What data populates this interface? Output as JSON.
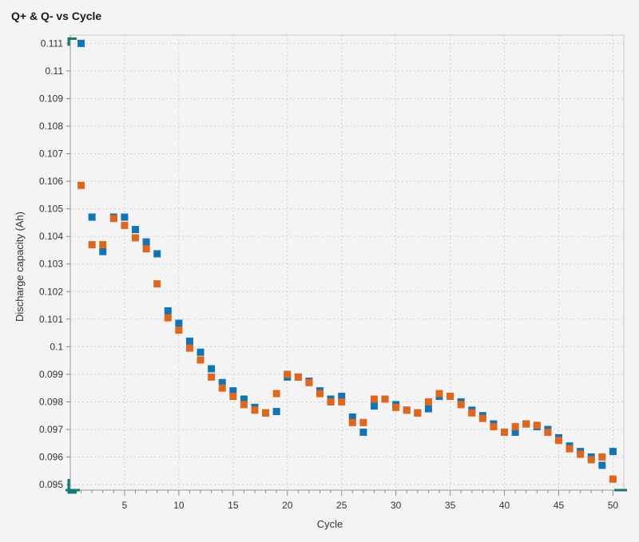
{
  "chart_data": {
    "type": "scatter",
    "title": "Q+ & Q- vs Cycle",
    "xlabel": "Cycle",
    "ylabel": "Discharge capacity (Ah)",
    "xlim": [
      0,
      51
    ],
    "ylim": [
      0.0948,
      0.1113
    ],
    "xticks": [
      5,
      10,
      15,
      20,
      25,
      30,
      35,
      40,
      45,
      50
    ],
    "yticks": [
      0.095,
      0.096,
      0.097,
      0.098,
      0.099,
      0.1,
      0.101,
      0.102,
      0.103,
      0.104,
      0.105,
      0.106,
      0.107,
      0.108,
      0.109,
      0.11,
      0.111
    ],
    "ytick_labels": [
      "0.095",
      "0.096",
      "0.097",
      "0.098",
      "0.099",
      "0.1",
      "0.101",
      "0.102",
      "0.103",
      "0.104",
      "0.105",
      "0.106",
      "0.107",
      "0.108",
      "0.109",
      "0.11",
      "0.111"
    ],
    "grid": true,
    "series": [
      {
        "name": "Q+",
        "color": "#0f74b8",
        "x": [
          1,
          2,
          3,
          4,
          5,
          6,
          7,
          8,
          9,
          10,
          11,
          12,
          13,
          14,
          15,
          16,
          17,
          18,
          19,
          20,
          21,
          22,
          23,
          24,
          25,
          26,
          27,
          28,
          29,
          30,
          31,
          32,
          33,
          34,
          35,
          36,
          37,
          38,
          39,
          40,
          41,
          42,
          43,
          44,
          45,
          46,
          47,
          48,
          49,
          50
        ],
        "y": [
          0.111,
          0.1047,
          0.10345,
          0.1047,
          0.1047,
          0.10425,
          0.1038,
          0.10337,
          0.1013,
          0.10085,
          0.1002,
          0.0998,
          0.0992,
          0.0987,
          0.0984,
          0.0981,
          0.0978,
          0.0976,
          0.09765,
          0.0989,
          0.0989,
          0.09875,
          0.0984,
          0.0981,
          0.0982,
          0.09745,
          0.0969,
          0.09785,
          0.0981,
          0.0979,
          0.0977,
          0.0976,
          0.09775,
          0.0982,
          0.0982,
          0.098,
          0.0977,
          0.0975,
          0.0972,
          0.0969,
          0.0969,
          0.0972,
          0.0971,
          0.097,
          0.0967,
          0.0964,
          0.0962,
          0.096,
          0.0957,
          0.0962
        ]
      },
      {
        "name": "Q-",
        "color": "#e0661b",
        "x": [
          1,
          2,
          3,
          4,
          5,
          6,
          7,
          8,
          9,
          10,
          11,
          12,
          13,
          14,
          15,
          16,
          17,
          18,
          19,
          20,
          21,
          22,
          23,
          24,
          25,
          26,
          27,
          28,
          29,
          30,
          31,
          32,
          33,
          34,
          35,
          36,
          37,
          38,
          39,
          40,
          41,
          42,
          43,
          44,
          45,
          46,
          47,
          48,
          49,
          50
        ],
        "y": [
          0.10585,
          0.1037,
          0.1037,
          0.10465,
          0.1044,
          0.10395,
          0.10355,
          0.10228,
          0.10105,
          0.1006,
          0.09995,
          0.09952,
          0.0989,
          0.0985,
          0.0982,
          0.0979,
          0.0977,
          0.0976,
          0.0983,
          0.099,
          0.0989,
          0.0987,
          0.0983,
          0.098,
          0.098,
          0.09725,
          0.09725,
          0.0981,
          0.0981,
          0.0978,
          0.0977,
          0.0976,
          0.098,
          0.0983,
          0.0982,
          0.0979,
          0.0976,
          0.0974,
          0.0971,
          0.0969,
          0.0971,
          0.0972,
          0.09715,
          0.0969,
          0.0966,
          0.0963,
          0.0961,
          0.0959,
          0.096,
          0.0952
        ]
      }
    ]
  }
}
